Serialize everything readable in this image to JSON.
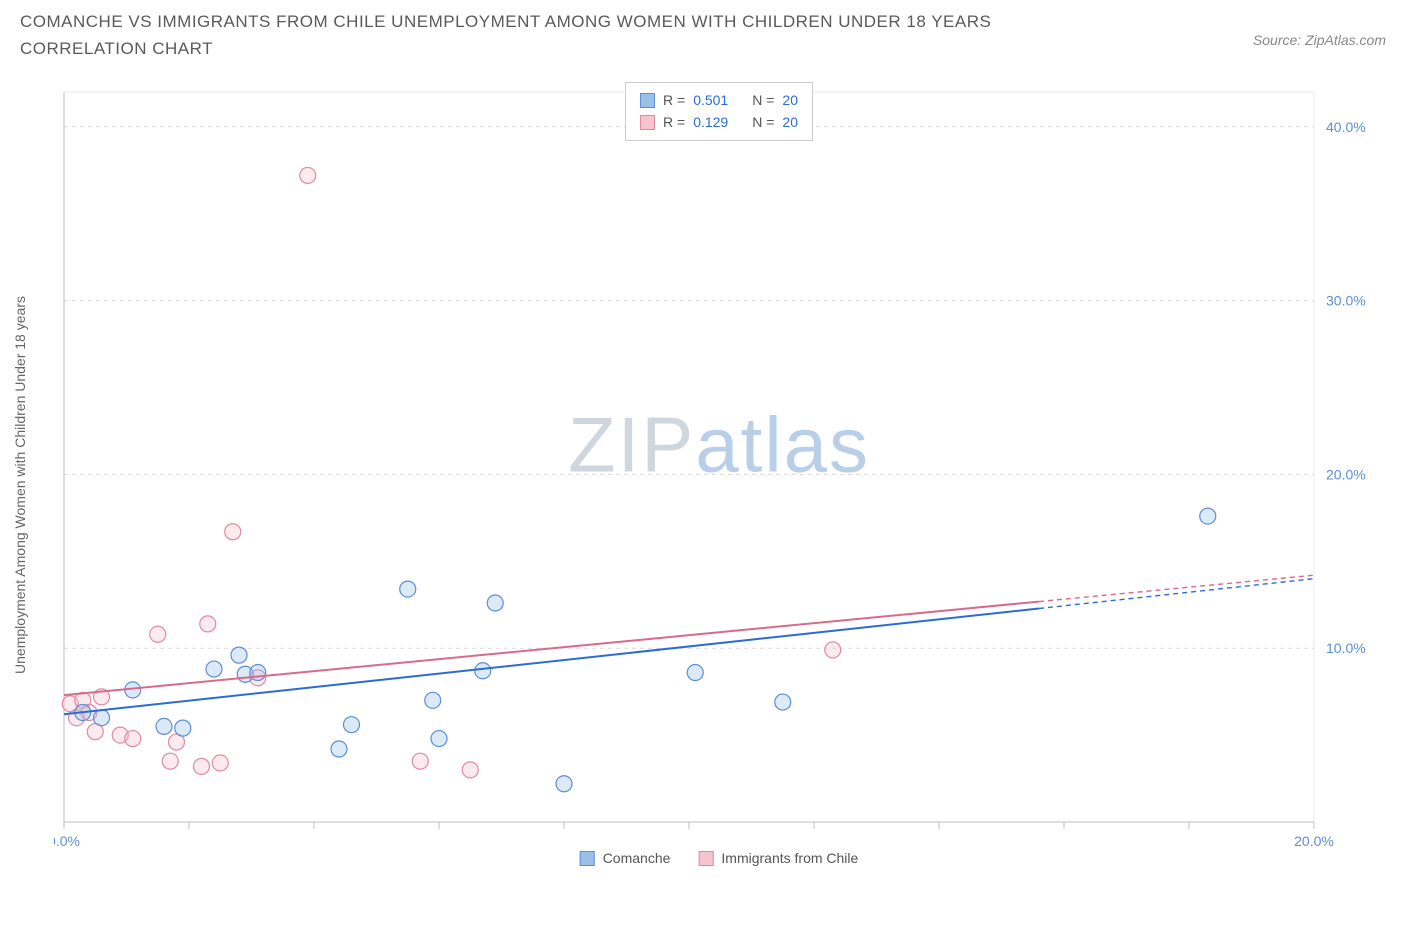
{
  "title": "COMANCHE VS IMMIGRANTS FROM CHILE UNEMPLOYMENT AMONG WOMEN WITH CHILDREN UNDER 18 YEARS CORRELATION CHART",
  "source_label": "Source: ZipAtlas.com",
  "y_axis_label": "Unemployment Among Women with Children Under 18 years",
  "watermark": {
    "part1": "ZIP",
    "part2": "atlas"
  },
  "chart": {
    "type": "scatter",
    "background_color": "#ffffff",
    "grid_color": "#d9d9d9",
    "axis_color": "#bfbfbf",
    "xlim": [
      0,
      20
    ],
    "ylim": [
      0,
      42
    ],
    "x_ticks": [
      0,
      2,
      4,
      6,
      8,
      10,
      12,
      14,
      16,
      18,
      20
    ],
    "x_tick_labels": {
      "0": "0.0%",
      "20": "20.0%"
    },
    "y_ticks": [
      10,
      20,
      30,
      40
    ],
    "y_tick_labels": {
      "10": "10.0%",
      "20": "20.0%",
      "30": "30.0%",
      "40": "40.0%"
    },
    "marker_radius": 8,
    "line_width": 2,
    "series": [
      {
        "key": "comanche",
        "label": "Comanche",
        "color_fill": "#9bc0e8",
        "color_stroke": "#5b8fd6",
        "trend_color": "#2b6cd4",
        "R": "0.501",
        "N": "20",
        "trend": {
          "x1": 0,
          "y1": 6.2,
          "x2": 20,
          "y2": 14.0
        },
        "points": [
          {
            "x": 0.3,
            "y": 6.3
          },
          {
            "x": 0.6,
            "y": 6.0
          },
          {
            "x": 1.1,
            "y": 7.6
          },
          {
            "x": 1.6,
            "y": 5.5
          },
          {
            "x": 1.9,
            "y": 5.4
          },
          {
            "x": 2.4,
            "y": 8.8
          },
          {
            "x": 2.8,
            "y": 9.6
          },
          {
            "x": 2.9,
            "y": 8.5
          },
          {
            "x": 3.1,
            "y": 8.6
          },
          {
            "x": 4.4,
            "y": 4.2
          },
          {
            "x": 4.6,
            "y": 5.6
          },
          {
            "x": 5.5,
            "y": 13.4
          },
          {
            "x": 5.9,
            "y": 7.0
          },
          {
            "x": 6.0,
            "y": 4.8
          },
          {
            "x": 6.7,
            "y": 8.7
          },
          {
            "x": 6.9,
            "y": 12.6
          },
          {
            "x": 8.0,
            "y": 2.2
          },
          {
            "x": 10.1,
            "y": 8.6
          },
          {
            "x": 11.5,
            "y": 6.9
          },
          {
            "x": 18.3,
            "y": 17.6
          }
        ]
      },
      {
        "key": "chile",
        "label": "Immigrants from Chile",
        "color_fill": "#f5c4cf",
        "color_stroke": "#e08aa0",
        "trend_color": "#d96a8a",
        "R": "0.129",
        "N": "20",
        "trend": {
          "x1": 0,
          "y1": 7.3,
          "x2": 20,
          "y2": 14.2
        },
        "points": [
          {
            "x": 0.1,
            "y": 6.8
          },
          {
            "x": 0.2,
            "y": 6.0
          },
          {
            "x": 0.3,
            "y": 7.0
          },
          {
            "x": 0.4,
            "y": 6.3
          },
          {
            "x": 0.5,
            "y": 5.2
          },
          {
            "x": 0.6,
            "y": 7.2
          },
          {
            "x": 0.9,
            "y": 5.0
          },
          {
            "x": 1.1,
            "y": 4.8
          },
          {
            "x": 1.5,
            "y": 10.8
          },
          {
            "x": 1.7,
            "y": 3.5
          },
          {
            "x": 1.8,
            "y": 4.6
          },
          {
            "x": 2.2,
            "y": 3.2
          },
          {
            "x": 2.3,
            "y": 11.4
          },
          {
            "x": 2.5,
            "y": 3.4
          },
          {
            "x": 2.7,
            "y": 16.7
          },
          {
            "x": 3.1,
            "y": 8.3
          },
          {
            "x": 3.9,
            "y": 37.2
          },
          {
            "x": 5.7,
            "y": 3.5
          },
          {
            "x": 6.5,
            "y": 3.0
          },
          {
            "x": 12.3,
            "y": 9.9
          }
        ]
      }
    ]
  },
  "legend_top": {
    "r_prefix": "R = ",
    "n_prefix": "N = "
  }
}
